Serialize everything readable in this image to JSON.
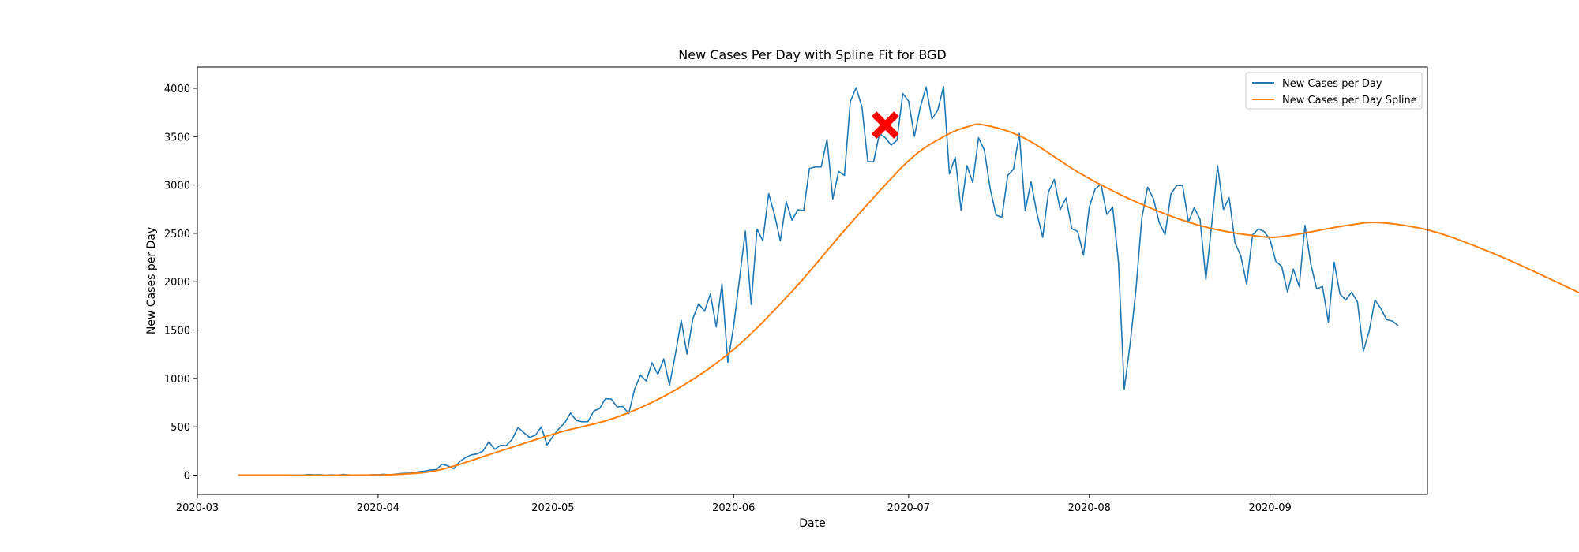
{
  "chart_data": {
    "type": "line",
    "title": "New Cases Per Day with Spline Fit for BGD",
    "xlabel": "Date",
    "ylabel": "New Cases per Day",
    "x_start": "2020-03-08",
    "xlim": [
      "2020-03-01",
      "2020-09-28"
    ],
    "ylim": [
      -200,
      4220
    ],
    "x_ticks": [
      "2020-03",
      "2020-04",
      "2020-05",
      "2020-06",
      "2020-07",
      "2020-08",
      "2020-09"
    ],
    "y_ticks": [
      0,
      500,
      1000,
      1500,
      2000,
      2500,
      3000,
      3500,
      4000
    ],
    "grid": false,
    "legend": {
      "location": "upper right",
      "entries": [
        "New Cases per Day",
        "New Cases per Day Spline"
      ]
    },
    "series": [
      {
        "name": "New Cases per Day",
        "color": "#1f77b4",
        "values": [
          0,
          0,
          0,
          0,
          0,
          0,
          0,
          0,
          0,
          0,
          0,
          0,
          6,
          4,
          5,
          0,
          3,
          0,
          7,
          2,
          0,
          0,
          0,
          5,
          5,
          9,
          2,
          10,
          17,
          20,
          22,
          35,
          41,
          54,
          58,
          112,
          94,
          66,
          139,
          182,
          209,
          219,
          249,
          344,
          266,
          309,
          306,
          369,
          492,
          439,
          390,
          414,
          497,
          311,
          403,
          479,
          539,
          641,
          564,
          552,
          553,
          663,
          688,
          790,
          786,
          706,
          709,
          636,
          887,
          1034,
          973,
          1162,
          1041,
          1202,
          930,
          1251,
          1602,
          1251,
          1617,
          1773,
          1694,
          1873,
          1532,
          1975,
          1166,
          1541,
          2029,
          2523,
          1764,
          2545,
          2423,
          2911,
          2695,
          2423,
          2828,
          2635,
          2743,
          2735,
          3171,
          3187,
          3187,
          3471,
          2856,
          3141,
          3099,
          3862,
          4008,
          3803,
          3243,
          3240,
          3531,
          3489,
          3412,
          3462,
          3946,
          3868,
          3504,
          3803,
          4014,
          3682,
          3775,
          4019,
          3114,
          3288,
          2738,
          3201,
          3027,
          3489,
          3360,
          2960,
          2689,
          2666,
          3099,
          3163,
          3533,
          2733,
          3034,
          2709,
          2459,
          2928,
          3057,
          2744,
          2865,
          2548,
          2520,
          2275,
          2772,
          2959,
          3009,
          2695,
          2772,
          2199,
          887,
          1356,
          1918,
          2654,
          2977,
          2858,
          2611,
          2487,
          2907,
          2996,
          2995,
          2617,
          2766,
          2644,
          2024,
          2595,
          3200,
          2747,
          2868,
          2401,
          2265,
          1973,
          2485,
          2545,
          2519,
          2436,
          2211,
          2158,
          1892,
          2131,
          1950,
          2582,
          2182,
          1927,
          1950,
          1582,
          2202,
          1873,
          1812,
          1892,
          1792,
          1282,
          1488,
          1812,
          1724,
          1607,
          1593,
          1544
        ]
      },
      {
        "name": "New Cases per Day Spline",
        "color": "#ff7f0e",
        "knots": [
          [
            0,
            0
          ],
          [
            20,
            0
          ],
          [
            28,
            10
          ],
          [
            35,
            60
          ],
          [
            45,
            250
          ],
          [
            55,
            440
          ],
          [
            65,
            600
          ],
          [
            75,
            880
          ],
          [
            85,
            1300
          ],
          [
            95,
            1900
          ],
          [
            105,
            2600
          ],
          [
            115,
            3250
          ],
          [
            121,
            3500
          ],
          [
            125,
            3600
          ],
          [
            128,
            3620
          ],
          [
            135,
            3480
          ],
          [
            145,
            3100
          ],
          [
            155,
            2800
          ],
          [
            165,
            2580
          ],
          [
            175,
            2470
          ],
          [
            180,
            2475
          ],
          [
            190,
            2580
          ],
          [
            196,
            2610
          ],
          [
            205,
            2520
          ],
          [
            215,
            2300
          ],
          [
            225,
            2030
          ],
          [
            235,
            1740
          ],
          [
            239,
            1620
          ],
          [
            243,
            1510
          ]
        ]
      }
    ],
    "annotations": [
      {
        "type": "marker",
        "shape": "x",
        "color": "#ff0000",
        "x_day": 111,
        "y": 3620
      }
    ]
  }
}
